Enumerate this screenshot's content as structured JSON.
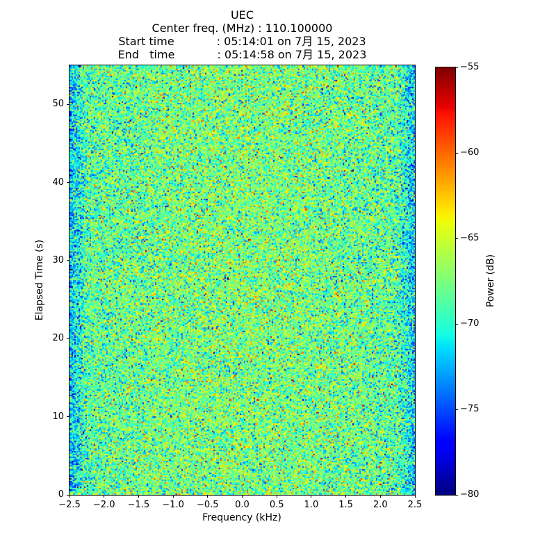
{
  "header": {
    "title": "UEC",
    "lines": [
      "Center freq. (MHz) : 110.100000",
      "Start time            : 05:14:01 on 7月 15, 2023",
      "End   time            : 05:14:58 on 7月 15, 2023"
    ]
  },
  "chart_data": {
    "type": "heatmap",
    "subtype": "spectrogram-noise",
    "title": "UEC",
    "center_freq_mhz": "110.100000",
    "start_time": "05:14:01 on 7月 15, 2023",
    "end_time": "05:14:58 on 7月 15, 2023",
    "xlabel": "Frequency (kHz)",
    "ylabel": "Elapsed Time (s)",
    "colorbar_label": "Power (dB)",
    "xlim": [
      -2.5,
      2.5
    ],
    "ylim": [
      0,
      55
    ],
    "clim": [
      -80,
      -55
    ],
    "x_ticks": [
      -2.5,
      -2.0,
      -1.5,
      -1.0,
      -0.5,
      0.0,
      0.5,
      1.0,
      1.5,
      2.0,
      2.5
    ],
    "x_tick_labels": [
      "−2.5",
      "−2.0",
      "−1.5",
      "−1.0",
      "−0.5",
      "0.0",
      "0.5",
      "1.0",
      "1.5",
      "2.0",
      "2.5"
    ],
    "y_ticks": [
      0,
      10,
      20,
      30,
      40,
      50
    ],
    "y_tick_labels": [
      "0",
      "10",
      "20",
      "30",
      "40",
      "50"
    ],
    "colorbar_ticks": [
      -55,
      -60,
      -65,
      -70,
      -75,
      -80
    ],
    "colorbar_tick_labels": [
      "−55",
      "−60",
      "−65",
      "−70",
      "−75",
      "−80"
    ],
    "colormap": "jet",
    "grid": false,
    "legend": "none",
    "noise": {
      "mean_db": -67.5,
      "std_db": 3.0,
      "seed": 42,
      "cols": 248,
      "rows": 300,
      "band_curve_db": 1.2,
      "edge_width_frac": 0.05,
      "edge_atten_db": 3.0,
      "hot_prob": 0.004,
      "cold_prob": 0.004
    }
  }
}
